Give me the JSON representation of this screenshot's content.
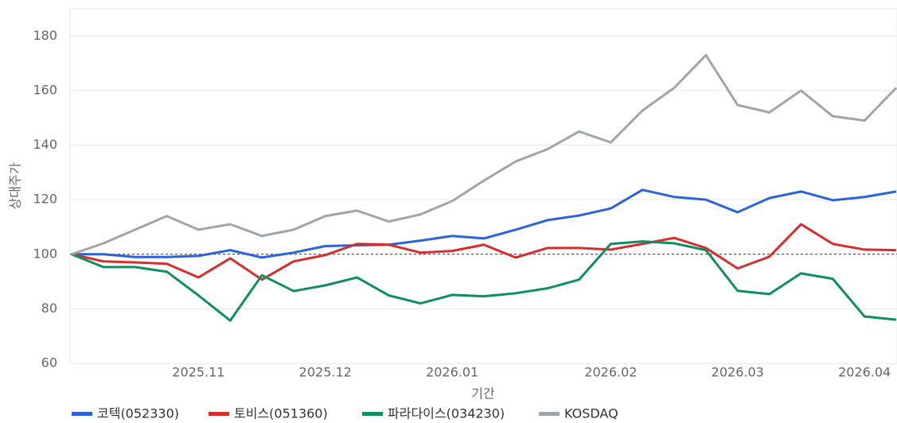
{
  "chart_data": {
    "type": "line",
    "y_label": "상대주가",
    "x_label": "기간",
    "categories": [
      null,
      null,
      null,
      null,
      "2025.11",
      null,
      null,
      null,
      "2025.12",
      null,
      null,
      null,
      "2026.01",
      null,
      null,
      null,
      null,
      "2026.02",
      null,
      null,
      null,
      "2026.03",
      null,
      null,
      null,
      "2026.04",
      null
    ],
    "series": [
      {
        "name": "코텍(052330)",
        "color": "#2b63d9",
        "values": [
          100,
          100,
          99,
          99,
          99.4,
          101.5,
          98.8,
          100.6,
          103,
          103.3,
          103.5,
          105,
          106.7,
          105.8,
          109,
          112.5,
          114.2,
          116.8,
          123.6,
          121,
          120,
          115.4,
          120.6,
          123,
          119.8,
          121,
          123
        ]
      },
      {
        "name": "토비스(051360)",
        "color": "#d62d2d",
        "values": [
          100,
          97.4,
          97,
          96.5,
          91.5,
          98.5,
          90.7,
          97.4,
          99.7,
          103.8,
          103.5,
          100.6,
          101.2,
          103.5,
          98.8,
          102.3,
          102.3,
          101.7,
          103.8,
          106,
          102.3,
          94.8,
          99.1,
          111,
          103.8,
          101.7,
          101.5
        ]
      },
      {
        "name": "파라다이스(034230)",
        "color": "#0f8f5f",
        "values": [
          100,
          95.3,
          95.3,
          93.6,
          84.9,
          75.7,
          92.3,
          86.5,
          88.6,
          91.5,
          84.9,
          82,
          85.1,
          84.6,
          85.7,
          87.5,
          90.7,
          103.8,
          104.7,
          104,
          101.5,
          86.6,
          85.4,
          93,
          91,
          77.2,
          76
        ]
      },
      {
        "name": "KOSDAQ",
        "color": "#a0a4ad",
        "values": [
          100,
          104,
          109,
          114,
          109,
          111,
          106.7,
          109,
          114,
          116,
          112,
          114.6,
          119.5,
          127,
          134,
          138.5,
          145,
          141,
          152.7,
          161,
          173,
          154.7,
          152,
          160,
          150.6,
          149,
          161
        ]
      }
    ],
    "reference": 100,
    "ylim": [
      60,
      190
    ],
    "yticks": [
      60,
      80,
      100,
      120,
      140,
      160,
      180
    ],
    "grid": true
  }
}
